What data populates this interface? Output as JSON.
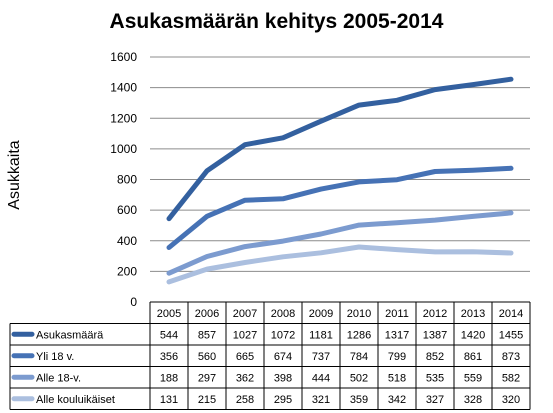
{
  "chart_data": {
    "type": "line",
    "title": "Asukasmäärän kehitys 2005-2014",
    "ylabel": "Asukkaita",
    "xlabel": "",
    "ylim": [
      0,
      1600
    ],
    "yticks": [
      0,
      200,
      400,
      600,
      800,
      1000,
      1200,
      1400,
      1600
    ],
    "grid": true,
    "legend": "data-table-below",
    "categories": [
      "2005",
      "2006",
      "2007",
      "2008",
      "2009",
      "2010",
      "2011",
      "2012",
      "2013",
      "2014"
    ],
    "series": [
      {
        "name": "Asukasmäärä",
        "color": "#33609f",
        "values": [
          544,
          857,
          1027,
          1072,
          1181,
          1286,
          1317,
          1387,
          1420,
          1455
        ]
      },
      {
        "name": "Yli 18 v.",
        "color": "#4672b5",
        "values": [
          356,
          560,
          665,
          674,
          737,
          784,
          799,
          852,
          861,
          873
        ]
      },
      {
        "name": "Alle 18-v.",
        "color": "#7c9bcf",
        "values": [
          188,
          297,
          362,
          398,
          444,
          502,
          518,
          535,
          559,
          582
        ]
      },
      {
        "name": "Alle kouluikäiset",
        "color": "#abbfdf",
        "values": [
          131,
          215,
          258,
          295,
          321,
          359,
          342,
          327,
          328,
          320
        ]
      }
    ]
  }
}
